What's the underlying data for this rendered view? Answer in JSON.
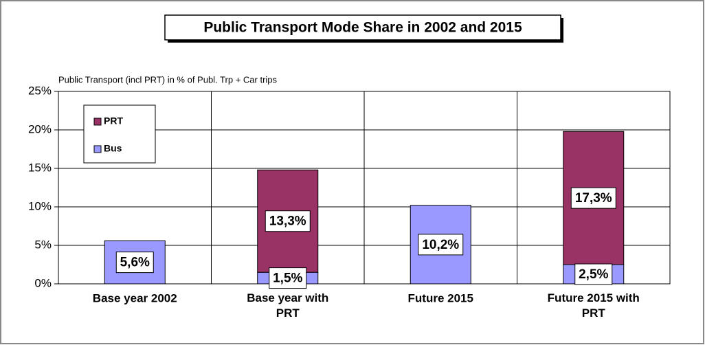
{
  "chart_data": {
    "type": "stacked_bar",
    "title": "Public Transport Mode Share in 2002 and 2015",
    "y_axis_label": "Public Transport (incl PRT) in % of Publ. Trp + Car trips",
    "categories": [
      "Base year 2002",
      "Base year with PRT",
      "Future 2015",
      "Future 2015 with PRT"
    ],
    "series": [
      {
        "name": "Bus",
        "color": "#9999ff",
        "values": [
          5.6,
          1.5,
          10.2,
          2.5
        ],
        "value_labels": [
          "5,6%",
          "1,5%",
          "10,2%",
          "2,5%"
        ]
      },
      {
        "name": "PRT",
        "color": "#993366",
        "values": [
          null,
          13.3,
          null,
          17.3
        ],
        "value_labels": [
          null,
          "13,3%",
          null,
          "17,3%"
        ]
      }
    ],
    "ylim": [
      0,
      25
    ],
    "yticks": [
      {
        "value": 0,
        "label": "0%"
      },
      {
        "value": 5,
        "label": "5%"
      },
      {
        "value": 10,
        "label": "10%"
      },
      {
        "value": 15,
        "label": "15%"
      },
      {
        "value": 20,
        "label": "20%"
      },
      {
        "value": 25,
        "label": "25%"
      }
    ],
    "grid": true,
    "legend": "upper left"
  }
}
